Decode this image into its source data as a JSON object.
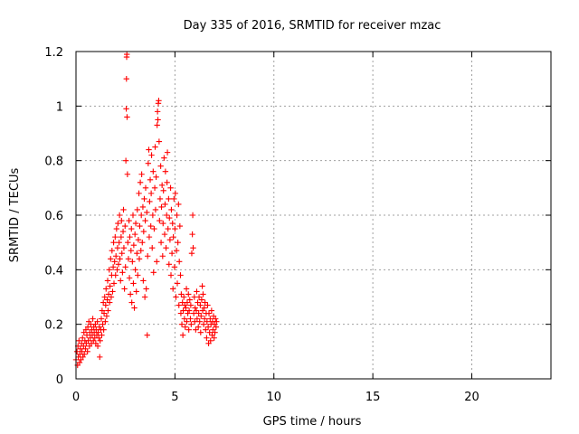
{
  "chart_data": {
    "type": "scatter",
    "title": "Day 335 of 2016, SRMTID for receiver mzac",
    "xlabel": "GPS time / hours",
    "ylabel": "SRMTID / TECUs",
    "xlim": [
      0,
      24
    ],
    "ylim": [
      0,
      1.2
    ],
    "xticks": [
      0,
      5,
      10,
      15,
      20
    ],
    "xtick_labels": [
      "0",
      "5",
      "10",
      "15",
      "20"
    ],
    "yticks": [
      0,
      0.2,
      0.4,
      0.6,
      0.8,
      1.0,
      1.2
    ],
    "ytick_labels": [
      "0",
      "0.2",
      "0.4",
      "0.6",
      "0.8",
      "1",
      "1.2"
    ],
    "grid": true,
    "marker": "plus",
    "series": [
      {
        "name": "SRMTID",
        "color": "#ff0000",
        "points": [
          [
            0.0,
            0.07
          ],
          [
            0.05,
            0.1
          ],
          [
            0.08,
            0.05
          ],
          [
            0.1,
            0.12
          ],
          [
            0.12,
            0.08
          ],
          [
            0.15,
            0.14
          ],
          [
            0.18,
            0.06
          ],
          [
            0.2,
            0.09
          ],
          [
            0.22,
            0.11
          ],
          [
            0.25,
            0.07
          ],
          [
            0.28,
            0.13
          ],
          [
            0.3,
            0.1
          ],
          [
            0.33,
            0.15
          ],
          [
            0.35,
            0.08
          ],
          [
            0.38,
            0.12
          ],
          [
            0.4,
            0.17
          ],
          [
            0.42,
            0.09
          ],
          [
            0.45,
            0.14
          ],
          [
            0.48,
            0.11
          ],
          [
            0.5,
            0.18
          ],
          [
            0.52,
            0.13
          ],
          [
            0.55,
            0.16
          ],
          [
            0.58,
            0.1
          ],
          [
            0.6,
            0.19
          ],
          [
            0.62,
            0.14
          ],
          [
            0.65,
            0.21
          ],
          [
            0.68,
            0.12
          ],
          [
            0.7,
            0.17
          ],
          [
            0.72,
            0.15
          ],
          [
            0.75,
            0.2
          ],
          [
            0.78,
            0.13
          ],
          [
            0.8,
            0.18
          ],
          [
            0.82,
            0.16
          ],
          [
            0.85,
            0.22
          ],
          [
            0.88,
            0.14
          ],
          [
            0.9,
            0.19
          ],
          [
            0.92,
            0.17
          ],
          [
            0.95,
            0.15
          ],
          [
            0.98,
            0.2
          ],
          [
            1.0,
            0.13
          ],
          [
            1.02,
            0.18
          ],
          [
            1.05,
            0.16
          ],
          [
            1.08,
            0.21
          ],
          [
            1.1,
            0.12
          ],
          [
            1.12,
            0.17
          ],
          [
            1.15,
            0.15
          ],
          [
            1.18,
            0.19
          ],
          [
            1.2,
            0.08
          ],
          [
            1.22,
            0.14
          ],
          [
            1.25,
            0.18
          ],
          [
            1.28,
            0.22
          ],
          [
            1.3,
            0.16
          ],
          [
            1.32,
            0.25
          ],
          [
            1.35,
            0.2
          ],
          [
            1.38,
            0.28
          ],
          [
            1.4,
            0.18
          ],
          [
            1.42,
            0.24
          ],
          [
            1.45,
            0.3
          ],
          [
            1.48,
            0.21
          ],
          [
            1.5,
            0.27
          ],
          [
            1.52,
            0.33
          ],
          [
            1.55,
            0.23
          ],
          [
            1.58,
            0.29
          ],
          [
            1.6,
            0.36
          ],
          [
            1.62,
            0.25
          ],
          [
            1.65,
            0.31
          ],
          [
            1.68,
            0.4
          ],
          [
            1.7,
            0.28
          ],
          [
            1.72,
            0.34
          ],
          [
            1.75,
            0.44
          ],
          [
            1.78,
            0.3
          ],
          [
            1.8,
            0.38
          ],
          [
            1.82,
            0.47
          ],
          [
            1.85,
            0.32
          ],
          [
            1.88,
            0.41
          ],
          [
            1.9,
            0.5
          ],
          [
            1.92,
            0.35
          ],
          [
            1.95,
            0.43
          ],
          [
            1.98,
            0.52
          ],
          [
            2.0,
            0.38
          ],
          [
            2.02,
            0.45
          ],
          [
            2.05,
            0.55
          ],
          [
            2.08,
            0.4
          ],
          [
            2.1,
            0.48
          ],
          [
            2.12,
            0.57
          ],
          [
            2.15,
            0.42
          ],
          [
            2.18,
            0.5
          ],
          [
            2.2,
            0.6
          ],
          [
            2.22,
            0.44
          ],
          [
            2.25,
            0.36
          ],
          [
            2.28,
            0.52
          ],
          [
            2.3,
            0.58
          ],
          [
            2.32,
            0.46
          ],
          [
            2.35,
            0.39
          ],
          [
            2.38,
            0.54
          ],
          [
            2.4,
            0.62
          ],
          [
            2.42,
            0.48
          ],
          [
            2.45,
            0.33
          ],
          [
            2.48,
            0.56
          ],
          [
            2.5,
            0.41
          ],
          [
            2.52,
            0.8
          ],
          [
            2.54,
            0.99
          ],
          [
            2.55,
            1.1
          ],
          [
            2.56,
            1.18
          ],
          [
            2.57,
            1.19
          ],
          [
            2.58,
            0.96
          ],
          [
            2.6,
            0.75
          ],
          [
            2.62,
            0.5
          ],
          [
            2.65,
            0.44
          ],
          [
            2.68,
            0.58
          ],
          [
            2.7,
            0.37
          ],
          [
            2.72,
            0.52
          ],
          [
            2.75,
            0.31
          ],
          [
            2.78,
            0.47
          ],
          [
            2.8,
            0.55
          ],
          [
            2.82,
            0.28
          ],
          [
            2.85,
            0.43
          ],
          [
            2.88,
            0.6
          ],
          [
            2.9,
            0.35
          ],
          [
            2.92,
            0.49
          ],
          [
            2.95,
            0.26
          ],
          [
            2.98,
            0.53
          ],
          [
            3.0,
            0.4
          ],
          [
            3.02,
            0.57
          ],
          [
            3.05,
            0.32
          ],
          [
            3.08,
            0.46
          ],
          [
            3.1,
            0.62
          ],
          [
            3.12,
            0.38
          ],
          [
            3.15,
            0.51
          ],
          [
            3.18,
            0.68
          ],
          [
            3.2,
            0.44
          ],
          [
            3.22,
            0.56
          ],
          [
            3.25,
            0.72
          ],
          [
            3.28,
            0.47
          ],
          [
            3.3,
            0.6
          ],
          [
            3.32,
            0.75
          ],
          [
            3.35,
            0.5
          ],
          [
            3.38,
            0.63
          ],
          [
            3.4,
            0.36
          ],
          [
            3.42,
            0.54
          ],
          [
            3.45,
            0.66
          ],
          [
            3.48,
            0.3
          ],
          [
            3.5,
            0.58
          ],
          [
            3.52,
            0.7
          ],
          [
            3.55,
            0.33
          ],
          [
            3.58,
            0.61
          ],
          [
            3.6,
            0.16
          ],
          [
            3.62,
            0.45
          ],
          [
            3.65,
            0.79
          ],
          [
            3.68,
            0.84
          ],
          [
            3.7,
            0.52
          ],
          [
            3.72,
            0.65
          ],
          [
            3.75,
            0.73
          ],
          [
            3.78,
            0.56
          ],
          [
            3.8,
            0.68
          ],
          [
            3.82,
            0.82
          ],
          [
            3.85,
            0.48
          ],
          [
            3.88,
            0.6
          ],
          [
            3.9,
            0.76
          ],
          [
            3.92,
            0.39
          ],
          [
            3.95,
            0.55
          ],
          [
            3.98,
            0.7
          ],
          [
            4.0,
            0.85
          ],
          [
            4.02,
            0.62
          ],
          [
            4.05,
            0.74
          ],
          [
            4.08,
            0.43
          ],
          [
            4.1,
            0.93
          ],
          [
            4.12,
            0.98
          ],
          [
            4.14,
            0.95
          ],
          [
            4.16,
            1.01
          ],
          [
            4.18,
            1.02
          ],
          [
            4.2,
            0.87
          ],
          [
            4.22,
            0.58
          ],
          [
            4.25,
            0.66
          ],
          [
            4.28,
            0.78
          ],
          [
            4.3,
            0.5
          ],
          [
            4.32,
            0.63
          ],
          [
            4.35,
            0.71
          ],
          [
            4.38,
            0.45
          ],
          [
            4.4,
            0.57
          ],
          [
            4.42,
            0.69
          ],
          [
            4.45,
            0.81
          ],
          [
            4.48,
            0.53
          ],
          [
            4.5,
            0.64
          ],
          [
            4.52,
            0.76
          ],
          [
            4.55,
            0.48
          ],
          [
            4.58,
            0.6
          ],
          [
            4.6,
            0.72
          ],
          [
            4.62,
            0.83
          ],
          [
            4.65,
            0.55
          ],
          [
            4.68,
            0.66
          ],
          [
            4.7,
            0.42
          ],
          [
            4.72,
            0.59
          ],
          [
            4.75,
            0.51
          ],
          [
            4.78,
            0.7
          ],
          [
            4.8,
            0.38
          ],
          [
            4.82,
            0.62
          ],
          [
            4.85,
            0.46
          ],
          [
            4.88,
            0.57
          ],
          [
            4.9,
            0.33
          ],
          [
            4.92,
            0.52
          ],
          [
            4.95,
            0.66
          ],
          [
            4.98,
            0.41
          ],
          [
            5.0,
            0.55
          ],
          [
            5.02,
            0.68
          ],
          [
            5.05,
            0.3
          ],
          [
            5.08,
            0.47
          ],
          [
            5.1,
            0.6
          ],
          [
            5.12,
            0.35
          ],
          [
            5.15,
            0.5
          ],
          [
            5.18,
            0.64
          ],
          [
            5.2,
            0.27
          ],
          [
            5.22,
            0.43
          ],
          [
            5.25,
            0.56
          ],
          [
            5.28,
            0.38
          ],
          [
            5.3,
            0.24
          ],
          [
            5.32,
            0.31
          ],
          [
            5.35,
            0.2
          ],
          [
            5.38,
            0.28
          ],
          [
            5.4,
            0.16
          ],
          [
            5.42,
            0.25
          ],
          [
            5.45,
            0.3
          ],
          [
            5.48,
            0.22
          ],
          [
            5.5,
            0.27
          ],
          [
            5.52,
            0.19
          ],
          [
            5.55,
            0.26
          ],
          [
            5.58,
            0.33
          ],
          [
            5.6,
            0.21
          ],
          [
            5.62,
            0.28
          ],
          [
            5.65,
            0.24
          ],
          [
            5.68,
            0.31
          ],
          [
            5.7,
            0.18
          ],
          [
            5.72,
            0.25
          ],
          [
            5.75,
            0.29
          ],
          [
            5.78,
            0.22
          ],
          [
            5.8,
            0.27
          ],
          [
            5.82,
            0.2
          ],
          [
            5.85,
            0.46
          ],
          [
            5.88,
            0.53
          ],
          [
            5.9,
            0.6
          ],
          [
            5.92,
            0.48
          ],
          [
            5.95,
            0.24
          ],
          [
            5.98,
            0.3
          ],
          [
            6.0,
            0.21
          ],
          [
            6.02,
            0.26
          ],
          [
            6.05,
            0.18
          ],
          [
            6.08,
            0.25
          ],
          [
            6.1,
            0.32
          ],
          [
            6.12,
            0.22
          ],
          [
            6.15,
            0.28
          ],
          [
            6.18,
            0.19
          ],
          [
            6.2,
            0.24
          ],
          [
            6.22,
            0.3
          ],
          [
            6.25,
            0.21
          ],
          [
            6.28,
            0.27
          ],
          [
            6.3,
            0.17
          ],
          [
            6.32,
            0.23
          ],
          [
            6.35,
            0.29
          ],
          [
            6.38,
            0.34
          ],
          [
            6.4,
            0.25
          ],
          [
            6.42,
            0.31
          ],
          [
            6.45,
            0.2
          ],
          [
            6.48,
            0.26
          ],
          [
            6.5,
            0.22
          ],
          [
            6.52,
            0.28
          ],
          [
            6.55,
            0.18
          ],
          [
            6.58,
            0.24
          ],
          [
            6.6,
            0.15
          ],
          [
            6.62,
            0.21
          ],
          [
            6.65,
            0.27
          ],
          [
            6.68,
            0.19
          ],
          [
            6.7,
            0.13
          ],
          [
            6.72,
            0.24
          ],
          [
            6.75,
            0.17
          ],
          [
            6.78,
            0.22
          ],
          [
            6.8,
            0.14
          ],
          [
            6.82,
            0.2
          ],
          [
            6.85,
            0.25
          ],
          [
            6.88,
            0.16
          ],
          [
            6.9,
            0.21
          ],
          [
            6.92,
            0.18
          ],
          [
            6.95,
            0.23
          ],
          [
            6.98,
            0.15
          ],
          [
            7.0,
            0.2
          ],
          [
            7.02,
            0.17
          ],
          [
            7.05,
            0.22
          ],
          [
            7.08,
            0.19
          ],
          [
            7.1,
            0.21
          ]
        ]
      }
    ]
  }
}
